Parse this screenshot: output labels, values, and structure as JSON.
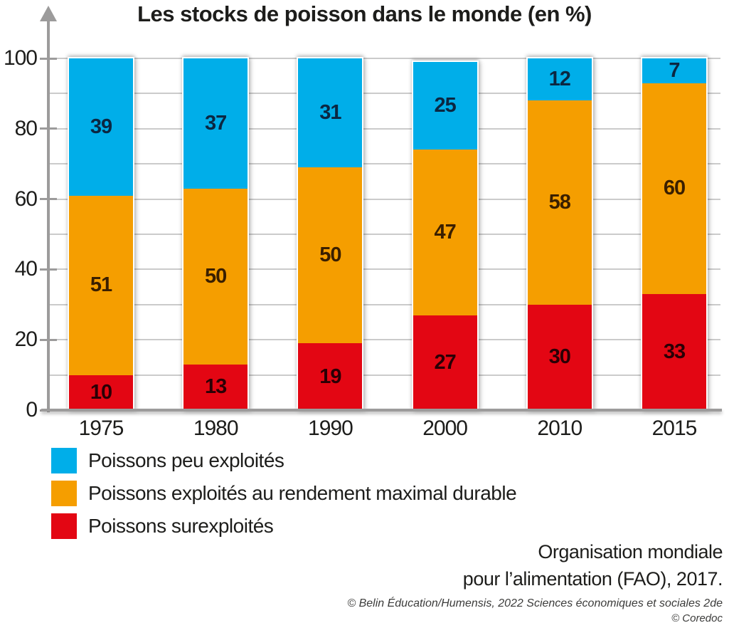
{
  "title": "Les stocks de poisson dans le monde (en %)",
  "chart_data": {
    "type": "bar",
    "stacked": true,
    "title": "Les stocks de poisson dans le monde (en %)",
    "categories": [
      "1975",
      "1980",
      "1990",
      "2000",
      "2010",
      "2015"
    ],
    "series": [
      {
        "name": "Poissons surexploités",
        "color": "#e30613",
        "label_color": "#2a0005",
        "values": [
          10,
          13,
          19,
          27,
          30,
          33
        ]
      },
      {
        "name": "Poissons exploités au rendement maximal durable",
        "color": "#f59e00",
        "label_color": "#3a1f00",
        "values": [
          51,
          50,
          50,
          47,
          58,
          60
        ]
      },
      {
        "name": "Poissons peu exploités",
        "color": "#00aee9",
        "label_color": "#0b2742",
        "values": [
          39,
          37,
          31,
          25,
          12,
          7
        ]
      }
    ],
    "xlabel": "",
    "ylabel": "",
    "ylim": [
      0,
      100
    ],
    "y_ticks": [
      0,
      20,
      40,
      60,
      80,
      100
    ],
    "grid": true,
    "grid_step": 10,
    "legend_position": "bottom-left",
    "axis_color": "#9c9b9b",
    "gridline_color": "#cbcbcb"
  },
  "legend": {
    "items": [
      {
        "label": "Poissons peu exploités",
        "color": "#00aee9"
      },
      {
        "label": "Poissons exploités au rendement maximal durable",
        "color": "#f59e00"
      },
      {
        "label": "Poissons surexploités",
        "color": "#e30613"
      }
    ]
  },
  "source": {
    "line1": "Organisation mondiale",
    "line2": "pour l’alimentation (FAO), 2017."
  },
  "credits": {
    "line1": "© Belin Éducation/Humensis, 2022 Sciences économiques et sociales 2de",
    "line2": "© Coredoc"
  }
}
